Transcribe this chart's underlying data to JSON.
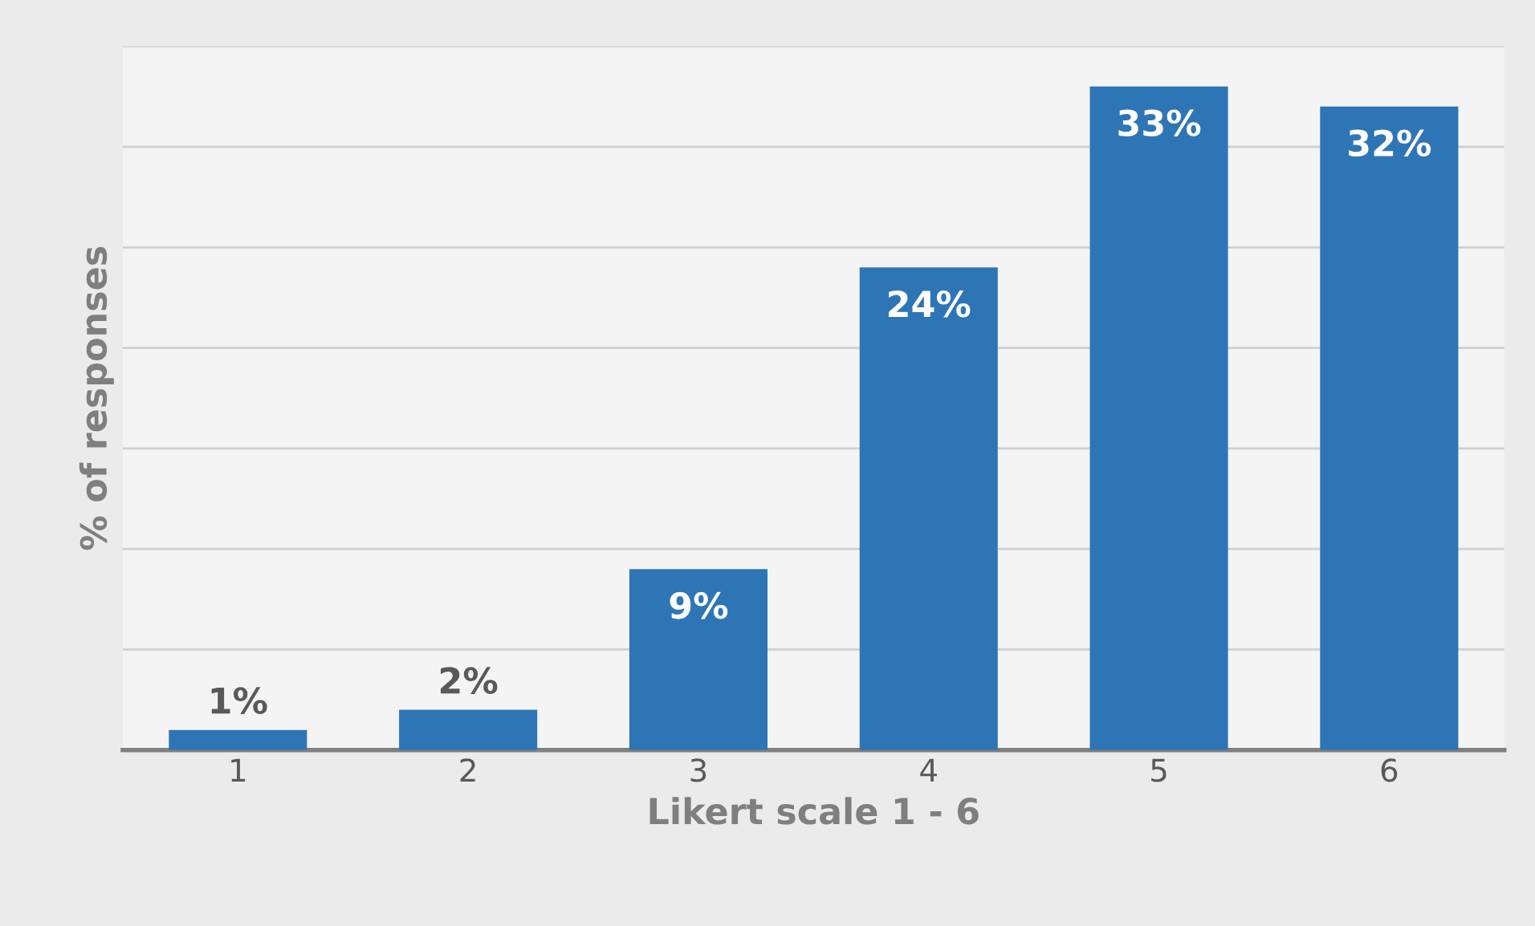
{
  "chart_data": {
    "type": "bar",
    "xlabel": "Likert scale 1 - 6",
    "ylabel": "% of responses",
    "categories": [
      "1",
      "2",
      "3",
      "4",
      "5",
      "6"
    ],
    "values": [
      1,
      2,
      9,
      24,
      33,
      32
    ],
    "value_labels": [
      "1%",
      "2%",
      "9%",
      "24%",
      "33%",
      "32%"
    ],
    "color": "#2e75b6",
    "ylim": [
      0,
      35
    ],
    "yticks": [
      {
        "value": 0,
        "label": null
      },
      {
        "value": 5,
        "label": null
      },
      {
        "value": 10,
        "label": null
      },
      {
        "value": 15,
        "label": null
      },
      {
        "value": 20,
        "label": null
      },
      {
        "value": 25,
        "label": null
      },
      {
        "value": 30,
        "label": null
      },
      {
        "value": 35,
        "label": null
      }
    ],
    "tick_labels": "x",
    "grid": "y",
    "legend": false
  }
}
